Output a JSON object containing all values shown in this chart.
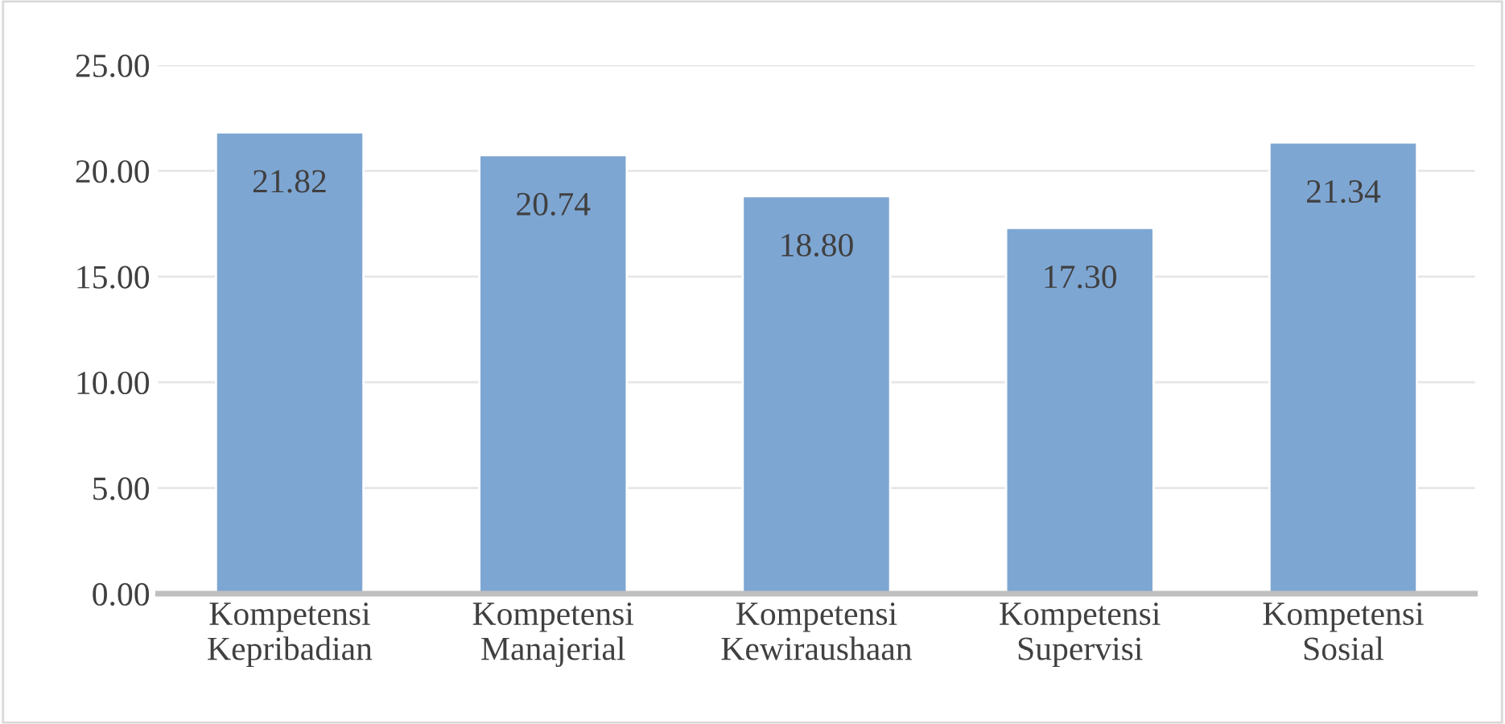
{
  "chart_data": {
    "type": "bar",
    "categories": [
      "Kompetensi\nKepribadian",
      "Kompetensi\nManajerial",
      "Kompetensi\nKewiraushaan",
      "Kompetensi\nSupervisi",
      "Kompetensi\nSosial"
    ],
    "values": [
      21.82,
      20.74,
      18.8,
      17.3,
      21.34
    ],
    "value_labels": [
      "21.82",
      "20.74",
      "18.80",
      "17.30",
      "21.34"
    ],
    "color": "#7ea6d3",
    "ylim": [
      0,
      25
    ],
    "yticks": [
      {
        "value": 0,
        "label": "0.00"
      },
      {
        "value": 5,
        "label": "5.00"
      },
      {
        "value": 10,
        "label": "10.00"
      },
      {
        "value": 15,
        "label": "15.00"
      },
      {
        "value": 20,
        "label": "20.00"
      },
      {
        "value": 25,
        "label": "25.00"
      }
    ],
    "grid": "y",
    "legend": false
  }
}
